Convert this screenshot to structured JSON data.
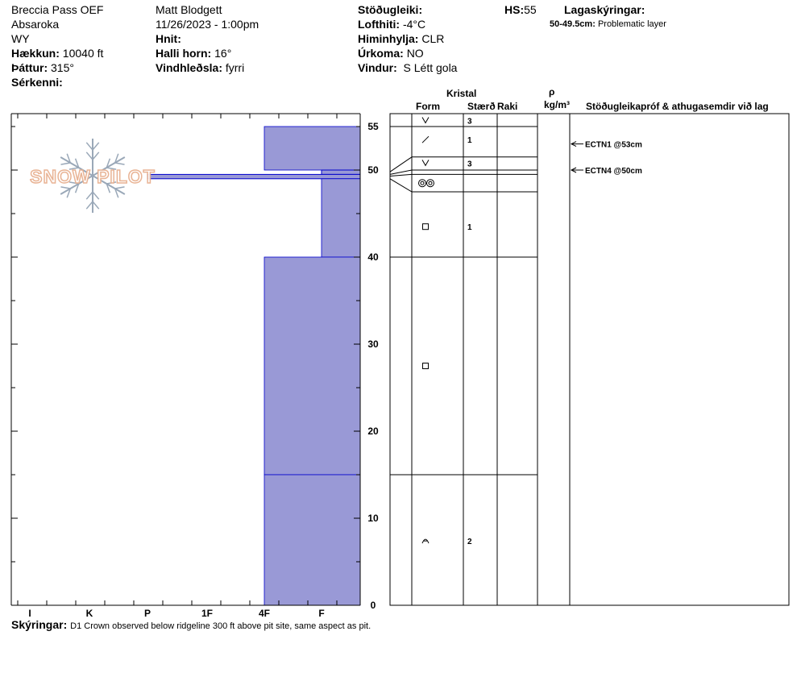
{
  "header": {
    "location": "Breccia Pass OEF",
    "range": "Absaroka",
    "state": "WY",
    "elevation_label": "Hækkun:",
    "elevation_value": "10040 ft",
    "aspect_label": "Þáttur:",
    "aspect_value": "315°",
    "features_label": "Sérkenni:",
    "observer": "Matt Blodgett",
    "datetime": "11/26/2023 - 1:00pm",
    "coords_label": "Hnit:",
    "slope_label": "Halli horn:",
    "slope_value": "16°",
    "windload_label": "Vindhleðsla:",
    "windload_value": "fyrri",
    "stability_label": "Stöðugleiki:",
    "airtemp_label": "Lofthiti:",
    "airtemp_value": "-4°C",
    "sky_label": "Himinhylja:",
    "sky_value": "CLR",
    "precip_label": "Úrkoma:",
    "precip_value": "NO",
    "wind_label": "Vindur:",
    "wind_value": "S Létt gola",
    "hs_label": "HS:",
    "hs_value": "55",
    "layer_notes_label": "Lagaskýringar:",
    "layer_note_range": "50-49.5cm:",
    "layer_note_text": "Problematic layer"
  },
  "columns": {
    "crystal": "Kristal",
    "form": "Form",
    "size": "Stærð",
    "moisture": "Raki",
    "rho": "ρ",
    "density_unit": "kg/m³",
    "tests": "Stöðugleikapróf & athugasemdir við lag"
  },
  "watermark": "SNOW PILOT",
  "footer": {
    "label": "Skýringar:",
    "text": "D1 Crown observed below ridgeline 300 ft above pit site, same aspect as pit."
  },
  "colors": {
    "hardness_fill": "#9999d6",
    "hardness_edge": "#0000cc",
    "watermark": "#e8b090",
    "snowflake": "#9aa8b8"
  },
  "chart_data": {
    "type": "bar",
    "title": "",
    "ylabel": "",
    "xlabel": "",
    "ylim": [
      0,
      57
    ],
    "y_ticks": [
      0,
      10,
      20,
      30,
      40,
      50,
      55
    ],
    "hardness_scale": [
      "I",
      "K",
      "P",
      "1F",
      "4F",
      "F"
    ],
    "hardness_profile": [
      {
        "top": 55,
        "bottom": 50,
        "hardness": "4F"
      },
      {
        "top": 50,
        "bottom": 49.5,
        "hardness": "F"
      },
      {
        "top": 49.5,
        "bottom": 49,
        "hardness": "P"
      },
      {
        "top": 49,
        "bottom": 40,
        "hardness": "F"
      },
      {
        "top": 40,
        "bottom": 15,
        "hardness": "4F"
      },
      {
        "top": 15,
        "bottom": 0,
        "hardness": "4F"
      }
    ],
    "layer_boundaries": [
      55,
      51.5,
      50,
      49.5,
      47.5,
      40,
      15
    ],
    "grains": [
      {
        "depth": 55.7,
        "form": "v-icon",
        "size": "3"
      },
      {
        "depth": 53.5,
        "form": "slash-icon",
        "size": "1"
      },
      {
        "depth": 50.8,
        "form": "v-icon",
        "size": "3"
      },
      {
        "depth": 48.5,
        "form": "double-circle-icon",
        "size": ""
      },
      {
        "depth": 43.5,
        "form": "square-icon",
        "size": "1"
      },
      {
        "depth": 27.5,
        "form": "square-icon",
        "size": ""
      },
      {
        "depth": 7.4,
        "form": "arch-icon",
        "size": "2"
      }
    ],
    "tests": [
      {
        "depth": 53,
        "label": "ECTN1 @53cm"
      },
      {
        "depth": 50,
        "label": "ECTN4 @50cm"
      }
    ]
  }
}
